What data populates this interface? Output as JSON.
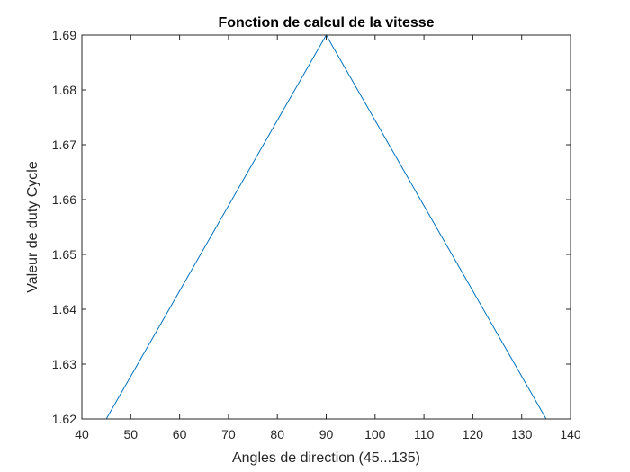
{
  "chart_data": {
    "type": "line",
    "title": "Fonction de calcul de la vitesse",
    "xlabel": "Angles de direction (45...135)",
    "ylabel": "Valeur de duty Cycle",
    "xlim": [
      40,
      140
    ],
    "ylim": [
      1.62,
      1.69
    ],
    "xticks": [
      40,
      50,
      60,
      70,
      80,
      90,
      100,
      110,
      120,
      130,
      140
    ],
    "yticks": [
      1.62,
      1.63,
      1.64,
      1.65,
      1.66,
      1.67,
      1.68,
      1.69
    ],
    "xtick_labels": [
      "40",
      "50",
      "60",
      "70",
      "80",
      "90",
      "100",
      "110",
      "120",
      "130",
      "140"
    ],
    "ytick_labels": [
      "1.62",
      "1.63",
      "1.64",
      "1.65",
      "1.66",
      "1.67",
      "1.68",
      "1.69"
    ],
    "grid": false,
    "box": true,
    "series": [
      {
        "color": "#0072BD",
        "x": [
          45,
          90,
          135
        ],
        "y": [
          1.62,
          1.69,
          1.62
        ]
      }
    ]
  }
}
